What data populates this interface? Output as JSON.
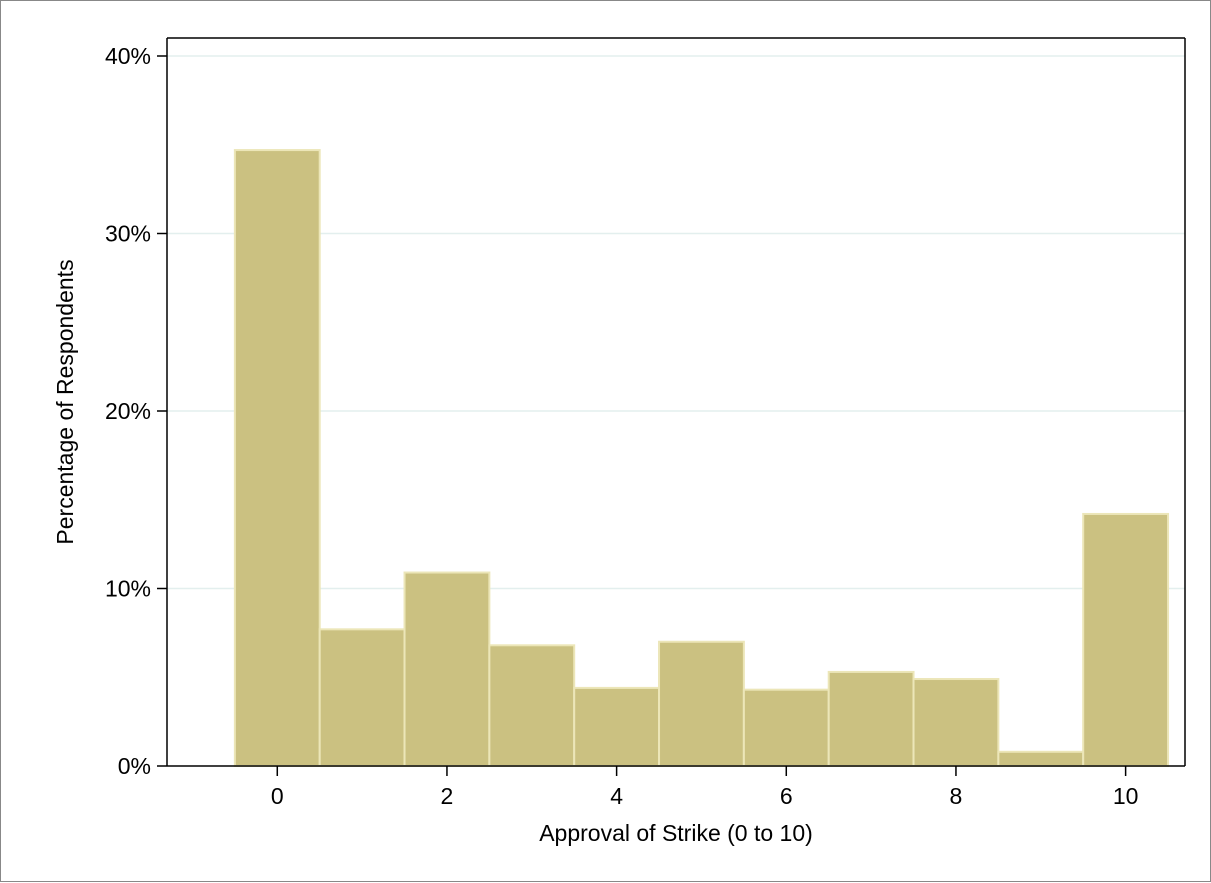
{
  "chart_data": {
    "type": "bar",
    "title": "",
    "xlabel": "Approval of Strike (0 to 10)",
    "ylabel": "Percentage of Respondents",
    "categories": [
      "0",
      "1",
      "2",
      "3",
      "4",
      "5",
      "6",
      "7",
      "8",
      "9",
      "10"
    ],
    "x": [
      0,
      1,
      2,
      3,
      4,
      5,
      6,
      7,
      8,
      9,
      10
    ],
    "values": [
      34.7,
      7.7,
      10.9,
      6.8,
      4.4,
      7.0,
      4.3,
      5.3,
      4.9,
      0.8,
      14.2
    ],
    "xlim": [
      -1.3,
      10.7
    ],
    "ylim": [
      0,
      40
    ],
    "x_ticks": [
      0,
      2,
      4,
      6,
      8,
      10
    ],
    "x_tick_labels": [
      "0",
      "2",
      "4",
      "6",
      "8",
      "10"
    ],
    "y_ticks": [
      0,
      10,
      20,
      30,
      40
    ],
    "y_tick_labels": [
      "0%",
      "10%",
      "20%",
      "30%",
      "40%"
    ],
    "grid": true,
    "legend": "none",
    "colors": {
      "bar_fill": "#cbc181",
      "bar_edge": "#ece6b8",
      "grid": "#e3efee",
      "axis": "#000000"
    }
  }
}
